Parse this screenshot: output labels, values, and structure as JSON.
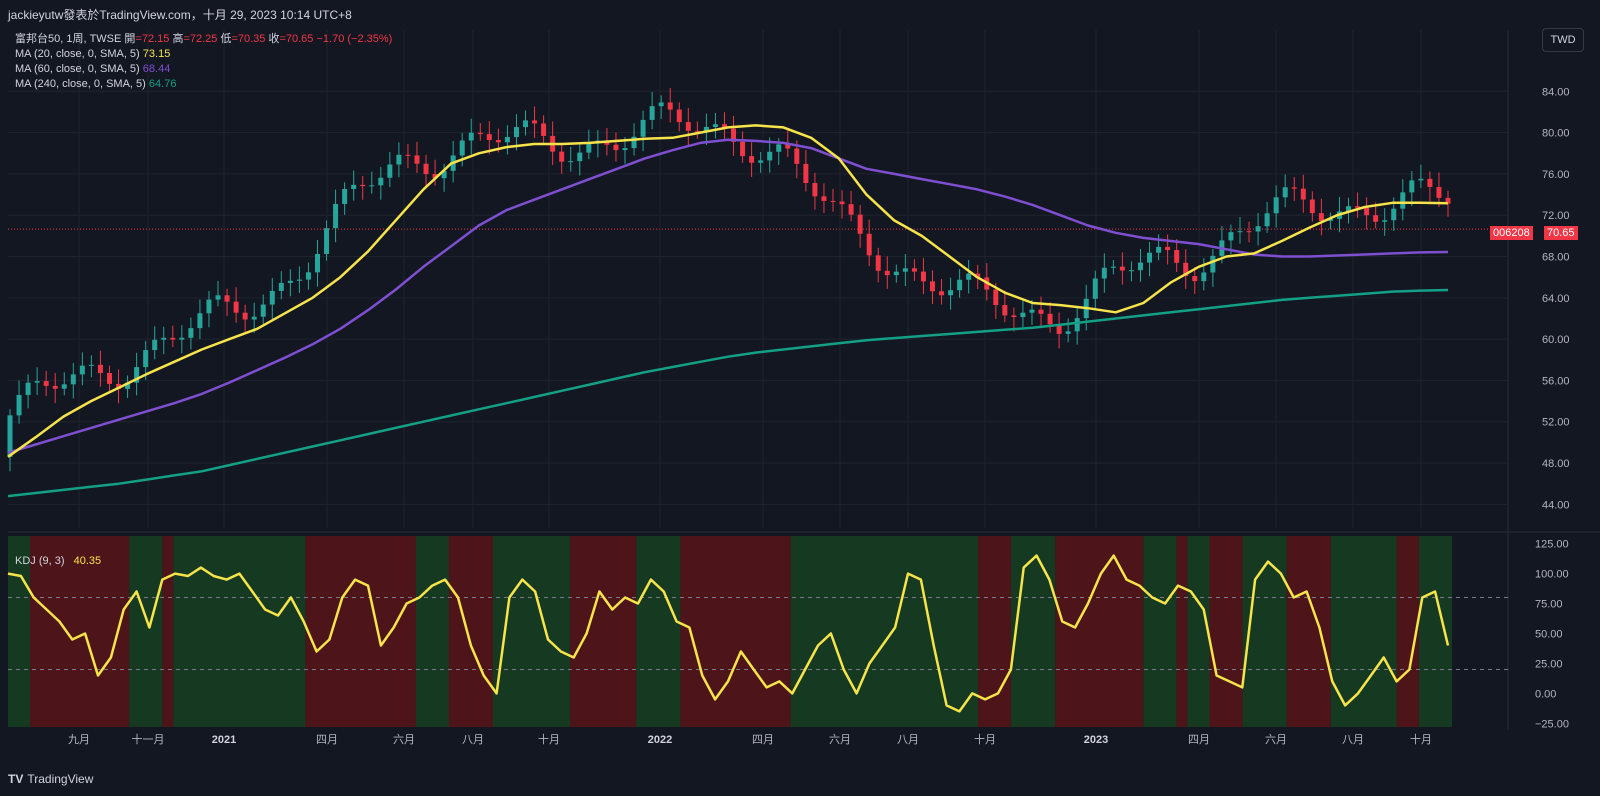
{
  "header": {
    "title": "jackieyutw發表於TradingView.com，十月 29, 2023 10:14 UTC+8"
  },
  "legend": {
    "symbol": "富邦台50, 1周, TWSE",
    "open_label": "開",
    "open": "=72.15",
    "high_label": "高",
    "high": "=72.25",
    "low_label": "低",
    "low": "=70.35",
    "close_label": "收",
    "close": "=70.65",
    "change": "−1.70 (−2.35%)",
    "ma20_label": "MA (20, close, 0, SMA, 5)",
    "ma20_value": "73.15",
    "ma60_label": "MA (60, close, 0, SMA, 5)",
    "ma60_value": "68.44",
    "ma240_label": "MA (240, close, 0, SMA, 5)",
    "ma240_value": "64.76"
  },
  "kdj_legend": {
    "label": "KDJ (9, 3)",
    "value": "40.35"
  },
  "currency": "TWD",
  "price_tag": {
    "ticker": "006208",
    "price": "70.65"
  },
  "footer": {
    "brand": "TradingView"
  },
  "colors": {
    "ma20": "#f7e34a",
    "ma60": "#7e4fd1",
    "ma240": "#13a085",
    "up": "#26a69a",
    "down": "#f23645",
    "kdj": "#f7e34a",
    "bg_green": "#153a21",
    "bg_red": "#4d1519"
  },
  "chart_data": [
    {
      "type": "candlestick",
      "x_labels": [
        "九月",
        "十一月",
        "2021",
        "四月",
        "六月",
        "八月",
        "十月",
        "2022",
        "四月",
        "六月",
        "八月",
        "十月",
        "2023",
        "四月",
        "六月",
        "八月",
        "十月"
      ],
      "y_ticks": [
        "44.00",
        "48.00",
        "52.00",
        "56.00",
        "60.00",
        "64.00",
        "68.00",
        "72.00",
        "76.00",
        "80.00",
        "84.00"
      ],
      "ylim": [
        42,
        88
      ],
      "last_price": 70.65,
      "ma20": [
        48.6,
        50.5,
        52.5,
        54.0,
        55.3,
        56.6,
        57.8,
        59.0,
        60.0,
        61.0,
        62.5,
        64.0,
        66.0,
        68.5,
        71.5,
        74.5,
        77.0,
        78.0,
        78.6,
        78.9,
        78.9,
        79.0,
        79.2,
        79.4,
        79.5,
        80.0,
        80.5,
        80.7,
        80.5,
        79.5,
        77.5,
        74.0,
        71.5,
        70.0,
        68.0,
        66.0,
        64.5,
        63.5,
        63.3,
        63.0,
        62.6,
        63.5,
        65.5,
        67.0,
        68.0,
        68.3,
        69.5,
        70.8,
        72.0,
        72.8,
        73.2,
        73.2,
        73.15
      ],
      "ma60": [
        49.0,
        49.8,
        50.6,
        51.4,
        52.2,
        53.0,
        53.8,
        54.7,
        55.8,
        57.0,
        58.2,
        59.5,
        61.0,
        62.8,
        64.8,
        67.0,
        69.0,
        71.0,
        72.5,
        73.5,
        74.5,
        75.5,
        76.5,
        77.5,
        78.3,
        79.0,
        79.3,
        79.2,
        79.0,
        78.5,
        77.5,
        76.5,
        76.0,
        75.5,
        75.0,
        74.5,
        73.8,
        73.0,
        72.0,
        71.0,
        70.3,
        69.8,
        69.5,
        69.2,
        68.7,
        68.2,
        68.0,
        68.0,
        68.1,
        68.2,
        68.3,
        68.4,
        68.44
      ],
      "ma240": [
        44.8,
        45.1,
        45.4,
        45.7,
        46.0,
        46.4,
        46.8,
        47.2,
        47.8,
        48.4,
        49.0,
        49.6,
        50.2,
        50.8,
        51.4,
        52.0,
        52.6,
        53.2,
        53.8,
        54.4,
        55.0,
        55.6,
        56.2,
        56.8,
        57.3,
        57.8,
        58.3,
        58.7,
        59.0,
        59.3,
        59.6,
        59.9,
        60.1,
        60.3,
        60.5,
        60.7,
        60.9,
        61.1,
        61.4,
        61.7,
        62.0,
        62.3,
        62.6,
        62.9,
        63.2,
        63.5,
        63.8,
        64.0,
        64.2,
        64.4,
        64.6,
        64.7,
        64.76
      ]
    },
    {
      "type": "line",
      "name": "KDJ",
      "y_ticks": [
        "−25.00",
        "0.00",
        "25.00",
        "50.00",
        "75.00",
        "100.00",
        "125.00"
      ],
      "ylim": [
        -28,
        128
      ],
      "reference_lines": [
        80,
        20
      ],
      "values": [
        100,
        98,
        80,
        70,
        60,
        45,
        50,
        15,
        30,
        70,
        85,
        55,
        95,
        100,
        98,
        105,
        98,
        95,
        100,
        85,
        70,
        65,
        80,
        60,
        35,
        45,
        80,
        95,
        90,
        40,
        55,
        75,
        80,
        90,
        95,
        80,
        40,
        15,
        0,
        80,
        95,
        85,
        45,
        35,
        30,
        50,
        85,
        70,
        80,
        75,
        95,
        85,
        60,
        55,
        15,
        -5,
        10,
        35,
        20,
        5,
        10,
        0,
        20,
        40,
        50,
        20,
        0,
        25,
        40,
        55,
        100,
        95,
        40,
        -10,
        -15,
        0,
        -5,
        0,
        20,
        105,
        115,
        95,
        60,
        55,
        75,
        100,
        115,
        95,
        90,
        80,
        75,
        90,
        85,
        70,
        15,
        10,
        5,
        95,
        110,
        100,
        80,
        85,
        55,
        10,
        -10,
        0,
        15,
        30,
        10,
        20,
        80,
        85,
        40
      ],
      "zones": [
        {
          "color": "green",
          "from": 0,
          "to": 2
        },
        {
          "color": "red",
          "from": 2,
          "to": 11
        },
        {
          "color": "green",
          "from": 11,
          "to": 14
        },
        {
          "color": "red",
          "from": 14,
          "to": 15
        },
        {
          "color": "green",
          "from": 15,
          "to": 27
        },
        {
          "color": "red",
          "from": 27,
          "to": 37
        },
        {
          "color": "green",
          "from": 37,
          "to": 40
        },
        {
          "color": "red",
          "from": 40,
          "to": 44
        },
        {
          "color": "green",
          "from": 44,
          "to": 51
        },
        {
          "color": "red",
          "from": 51,
          "to": 57
        },
        {
          "color": "green",
          "from": 57,
          "to": 61
        },
        {
          "color": "red",
          "from": 61,
          "to": 71
        },
        {
          "color": "green",
          "from": 71,
          "to": 88
        },
        {
          "color": "red",
          "from": 88,
          "to": 91
        },
        {
          "color": "green",
          "from": 91,
          "to": 95
        },
        {
          "color": "red",
          "from": 95,
          "to": 103
        },
        {
          "color": "green",
          "from": 103,
          "to": 106
        },
        {
          "color": "red",
          "from": 106,
          "to": 107
        },
        {
          "color": "green",
          "from": 107,
          "to": 109
        },
        {
          "color": "red",
          "from": 109,
          "to": 112
        },
        {
          "color": "green",
          "from": 112,
          "to": 116
        },
        {
          "color": "red",
          "from": 116,
          "to": 120
        },
        {
          "color": "green",
          "from": 120,
          "to": 126
        },
        {
          "color": "red",
          "from": 126,
          "to": 128
        },
        {
          "color": "green",
          "from": 128,
          "to": 131
        }
      ]
    }
  ]
}
